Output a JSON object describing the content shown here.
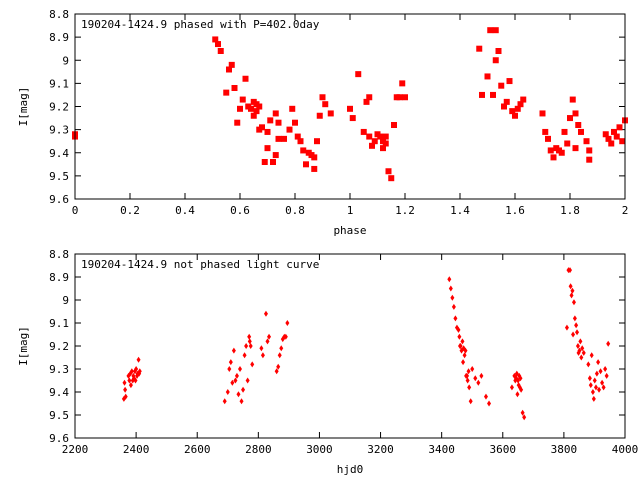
{
  "chart_data": [
    {
      "type": "scatter",
      "title": "190204-1424.9 phased with P=402.0day",
      "xlabel": "phase",
      "ylabel": "I[mag]",
      "xlim": [
        0,
        2
      ],
      "ylim": [
        8.8,
        9.6
      ],
      "y_inverted": true,
      "x_ticks": [
        "0",
        "0.2",
        "0.4",
        "0.6",
        "0.8",
        "1",
        "1.2",
        "1.4",
        "1.6",
        "1.8",
        "2"
      ],
      "y_ticks": [
        "8.8",
        "8.9",
        "9",
        "9.1",
        "9.2",
        "9.3",
        "9.4",
        "9.5",
        "9.6"
      ],
      "marker_color": "#ff0000",
      "points": [
        [
          0.0,
          9.32
        ],
        [
          0.0,
          9.33
        ],
        [
          0.51,
          8.91
        ],
        [
          0.52,
          8.93
        ],
        [
          0.53,
          8.96
        ],
        [
          0.55,
          9.14
        ],
        [
          0.56,
          9.04
        ],
        [
          0.57,
          9.02
        ],
        [
          0.58,
          9.12
        ],
        [
          0.59,
          9.27
        ],
        [
          0.6,
          9.21
        ],
        [
          0.61,
          9.17
        ],
        [
          0.62,
          9.08
        ],
        [
          0.63,
          9.2
        ],
        [
          0.64,
          9.21
        ],
        [
          0.65,
          9.24
        ],
        [
          0.65,
          9.18
        ],
        [
          0.66,
          9.19
        ],
        [
          0.66,
          9.22
        ],
        [
          0.67,
          9.3
        ],
        [
          0.67,
          9.2
        ],
        [
          0.68,
          9.29
        ],
        [
          0.69,
          9.44
        ],
        [
          0.7,
          9.31
        ],
        [
          0.7,
          9.38
        ],
        [
          0.71,
          9.26
        ],
        [
          0.72,
          9.44
        ],
        [
          0.73,
          9.23
        ],
        [
          0.73,
          9.41
        ],
        [
          0.74,
          9.34
        ],
        [
          0.74,
          9.27
        ],
        [
          0.76,
          9.34
        ],
        [
          0.78,
          9.3
        ],
        [
          0.79,
          9.21
        ],
        [
          0.8,
          9.27
        ],
        [
          0.81,
          9.33
        ],
        [
          0.82,
          9.35
        ],
        [
          0.83,
          9.39
        ],
        [
          0.84,
          9.45
        ],
        [
          0.85,
          9.4
        ],
        [
          0.86,
          9.41
        ],
        [
          0.87,
          9.47
        ],
        [
          0.87,
          9.42
        ],
        [
          0.88,
          9.35
        ],
        [
          0.89,
          9.24
        ],
        [
          0.9,
          9.16
        ],
        [
          0.91,
          9.19
        ],
        [
          0.93,
          9.23
        ],
        [
          1.0,
          9.21
        ],
        [
          1.01,
          9.25
        ],
        [
          1.03,
          9.06
        ],
        [
          1.05,
          9.31
        ],
        [
          1.06,
          9.18
        ],
        [
          1.07,
          9.16
        ],
        [
          1.07,
          9.33
        ],
        [
          1.08,
          9.37
        ],
        [
          1.09,
          9.35
        ],
        [
          1.1,
          9.32
        ],
        [
          1.11,
          9.33
        ],
        [
          1.12,
          9.35
        ],
        [
          1.12,
          9.38
        ],
        [
          1.13,
          9.36
        ],
        [
          1.13,
          9.33
        ],
        [
          1.14,
          9.48
        ],
        [
          1.15,
          9.51
        ],
        [
          1.16,
          9.28
        ],
        [
          1.17,
          9.16
        ],
        [
          1.18,
          9.16
        ],
        [
          1.19,
          9.1
        ],
        [
          1.2,
          9.16
        ],
        [
          1.47,
          8.95
        ],
        [
          1.48,
          9.15
        ],
        [
          1.5,
          9.07
        ],
        [
          1.51,
          8.87
        ],
        [
          1.52,
          9.15
        ],
        [
          1.53,
          8.87
        ],
        [
          1.53,
          9.0
        ],
        [
          1.54,
          8.96
        ],
        [
          1.55,
          9.11
        ],
        [
          1.56,
          9.2
        ],
        [
          1.57,
          9.18
        ],
        [
          1.58,
          9.09
        ],
        [
          1.59,
          9.22
        ],
        [
          1.6,
          9.24
        ],
        [
          1.61,
          9.21
        ],
        [
          1.62,
          9.19
        ],
        [
          1.63,
          9.17
        ],
        [
          1.7,
          9.23
        ],
        [
          1.71,
          9.31
        ],
        [
          1.72,
          9.34
        ],
        [
          1.73,
          9.39
        ],
        [
          1.74,
          9.42
        ],
        [
          1.75,
          9.38
        ],
        [
          1.76,
          9.39
        ],
        [
          1.77,
          9.4
        ],
        [
          1.78,
          9.31
        ],
        [
          1.79,
          9.36
        ],
        [
          1.8,
          9.25
        ],
        [
          1.81,
          9.17
        ],
        [
          1.82,
          9.23
        ],
        [
          1.82,
          9.38
        ],
        [
          1.83,
          9.28
        ],
        [
          1.84,
          9.31
        ],
        [
          1.86,
          9.35
        ],
        [
          1.87,
          9.39
        ],
        [
          1.87,
          9.43
        ],
        [
          1.93,
          9.32
        ],
        [
          1.94,
          9.34
        ],
        [
          1.95,
          9.36
        ],
        [
          1.96,
          9.31
        ],
        [
          1.97,
          9.33
        ],
        [
          1.98,
          9.29
        ],
        [
          1.99,
          9.35
        ],
        [
          2.0,
          9.26
        ]
      ]
    },
    {
      "type": "scatter",
      "title": "190204-1424.9 not phased light curve",
      "xlabel": "hjd0",
      "ylabel": "I[mag]",
      "xlim": [
        2200,
        4000
      ],
      "ylim": [
        8.8,
        9.6
      ],
      "y_inverted": true,
      "x_ticks": [
        "2200",
        "2400",
        "2600",
        "2800",
        "3000",
        "3200",
        "3400",
        "3600",
        "3800",
        "4000"
      ],
      "y_ticks": [
        "8.8",
        "8.9",
        "9",
        "9.1",
        "9.2",
        "9.3",
        "9.4",
        "9.5",
        "9.6"
      ],
      "marker_color": "#ff0000",
      "points": [
        [
          2360,
          9.43
        ],
        [
          2362,
          9.36
        ],
        [
          2364,
          9.39
        ],
        [
          2366,
          9.42
        ],
        [
          2375,
          9.33
        ],
        [
          2378,
          9.35
        ],
        [
          2381,
          9.32
        ],
        [
          2383,
          9.37
        ],
        [
          2386,
          9.31
        ],
        [
          2389,
          9.35
        ],
        [
          2391,
          9.33
        ],
        [
          2393,
          9.34
        ],
        [
          2396,
          9.31
        ],
        [
          2398,
          9.35
        ],
        [
          2400,
          9.3
        ],
        [
          2403,
          9.33
        ],
        [
          2405,
          9.32
        ],
        [
          2408,
          9.26
        ],
        [
          2410,
          9.32
        ],
        [
          2412,
          9.31
        ],
        [
          2690,
          9.44
        ],
        [
          2700,
          9.4
        ],
        [
          2705,
          9.3
        ],
        [
          2710,
          9.27
        ],
        [
          2715,
          9.36
        ],
        [
          2720,
          9.22
        ],
        [
          2725,
          9.35
        ],
        [
          2730,
          9.33
        ],
        [
          2735,
          9.41
        ],
        [
          2740,
          9.3
        ],
        [
          2745,
          9.44
        ],
        [
          2750,
          9.39
        ],
        [
          2755,
          9.24
        ],
        [
          2760,
          9.2
        ],
        [
          2765,
          9.35
        ],
        [
          2770,
          9.16
        ],
        [
          2772,
          9.18
        ],
        [
          2775,
          9.2
        ],
        [
          2780,
          9.28
        ],
        [
          2810,
          9.21
        ],
        [
          2815,
          9.24
        ],
        [
          2825,
          9.06
        ],
        [
          2830,
          9.18
        ],
        [
          2835,
          9.16
        ],
        [
          2860,
          9.31
        ],
        [
          2865,
          9.29
        ],
        [
          2870,
          9.24
        ],
        [
          2875,
          9.21
        ],
        [
          2880,
          9.17
        ],
        [
          2885,
          9.16
        ],
        [
          2890,
          9.16
        ],
        [
          2895,
          9.1
        ],
        [
          3425,
          8.91
        ],
        [
          3430,
          8.95
        ],
        [
          3435,
          8.99
        ],
        [
          3440,
          9.03
        ],
        [
          3445,
          9.08
        ],
        [
          3450,
          9.12
        ],
        [
          3455,
          9.13
        ],
        [
          3458,
          9.16
        ],
        [
          3460,
          9.2
        ],
        [
          3462,
          9.2
        ],
        [
          3465,
          9.22
        ],
        [
          3468,
          9.18
        ],
        [
          3470,
          9.27
        ],
        [
          3472,
          9.21
        ],
        [
          3475,
          9.24
        ],
        [
          3478,
          9.22
        ],
        [
          3480,
          9.33
        ],
        [
          3483,
          9.33
        ],
        [
          3485,
          9.35
        ],
        [
          3488,
          9.31
        ],
        [
          3490,
          9.38
        ],
        [
          3495,
          9.44
        ],
        [
          3500,
          9.3
        ],
        [
          3510,
          9.34
        ],
        [
          3520,
          9.36
        ],
        [
          3530,
          9.33
        ],
        [
          3545,
          9.42
        ],
        [
          3555,
          9.45
        ],
        [
          3630,
          9.38
        ],
        [
          3638,
          9.33
        ],
        [
          3641,
          9.35
        ],
        [
          3644,
          9.34
        ],
        [
          3646,
          9.32
        ],
        [
          3648,
          9.41
        ],
        [
          3650,
          9.35
        ],
        [
          3652,
          9.37
        ],
        [
          3654,
          9.33
        ],
        [
          3656,
          9.38
        ],
        [
          3658,
          9.34
        ],
        [
          3660,
          9.39
        ],
        [
          3665,
          9.49
        ],
        [
          3670,
          9.51
        ],
        [
          3810,
          9.12
        ],
        [
          3815,
          8.87
        ],
        [
          3820,
          8.87
        ],
        [
          3822,
          8.94
        ],
        [
          3825,
          8.98
        ],
        [
          3828,
          8.96
        ],
        [
          3830,
          9.15
        ],
        [
          3833,
          9.01
        ],
        [
          3836,
          9.08
        ],
        [
          3840,
          9.11
        ],
        [
          3843,
          9.14
        ],
        [
          3846,
          9.2
        ],
        [
          3848,
          9.23
        ],
        [
          3851,
          9.22
        ],
        [
          3854,
          9.18
        ],
        [
          3857,
          9.25
        ],
        [
          3860,
          9.21
        ],
        [
          3865,
          9.23
        ],
        [
          3880,
          9.28
        ],
        [
          3885,
          9.34
        ],
        [
          3888,
          9.37
        ],
        [
          3891,
          9.24
        ],
        [
          3895,
          9.4
        ],
        [
          3898,
          9.43
        ],
        [
          3901,
          9.35
        ],
        [
          3905,
          9.38
        ],
        [
          3908,
          9.32
        ],
        [
          3912,
          9.27
        ],
        [
          3915,
          9.39
        ],
        [
          3920,
          9.31
        ],
        [
          3925,
          9.36
        ],
        [
          3930,
          9.38
        ],
        [
          3935,
          9.3
        ],
        [
          3940,
          9.33
        ],
        [
          3945,
          9.19
        ]
      ]
    }
  ]
}
